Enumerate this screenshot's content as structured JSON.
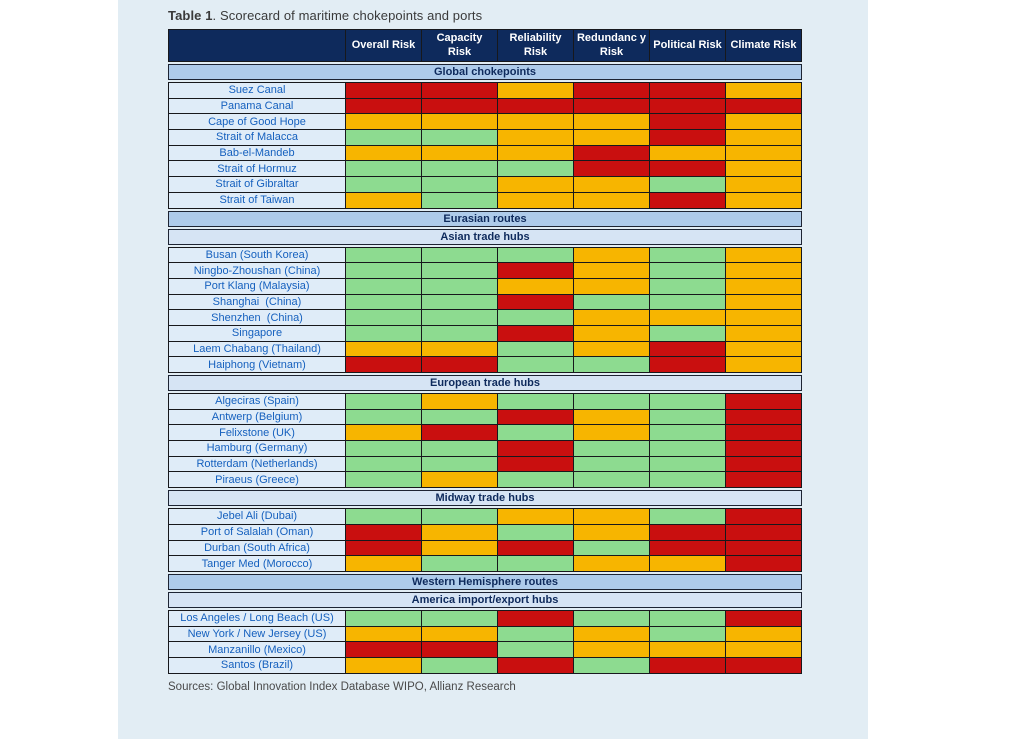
{
  "page": {
    "background": "#ffffff",
    "panel_background": "#e2edf4"
  },
  "chart_data": {
    "type": "table",
    "title_bold": "Table 1",
    "title_rest": ". Scorecard of maritime chokepoints and ports",
    "columns": [
      "Overall Risk",
      "Capacity Risk",
      "Reliability Risk",
      "Redundanc y Risk",
      "Political Risk",
      "Climate Risk"
    ],
    "risk_scale": {
      "green": "low risk",
      "amber": "medium risk",
      "red": "high risk"
    },
    "colors": {
      "red": "#c90f0f",
      "amber": "#f7b500",
      "green": "#8ddb90",
      "header_bg": "#0e2a5c",
      "header_text": "#ffffff",
      "section_medium_bg": "#aecbea",
      "section_light_bg": "#d6e4f4",
      "section_text": "#0e2a5c",
      "label_bg": "#dfecf8",
      "label_text": "#1560be",
      "cell_border": "#17181c"
    },
    "sections": [
      {
        "header": "Global chokepoints",
        "style": "medium",
        "rows": [
          {
            "label": "Suez Canal",
            "risks": [
              "red",
              "red",
              "amber",
              "red",
              "red",
              "amber"
            ]
          },
          {
            "label": "Panama Canal",
            "risks": [
              "red",
              "red",
              "red",
              "red",
              "red",
              "red"
            ]
          },
          {
            "label": "Cape of Good Hope",
            "risks": [
              "amber",
              "amber",
              "amber",
              "amber",
              "red",
              "amber"
            ]
          },
          {
            "label": "Strait of Malacca",
            "risks": [
              "green",
              "green",
              "amber",
              "amber",
              "red",
              "amber"
            ]
          },
          {
            "label": "Bab-el-Mandeb",
            "risks": [
              "amber",
              "amber",
              "amber",
              "red",
              "amber",
              "amber"
            ]
          },
          {
            "label": "Strait of Hormuz",
            "risks": [
              "green",
              "green",
              "green",
              "red",
              "red",
              "amber"
            ]
          },
          {
            "label": "Strait of Gibraltar",
            "risks": [
              "green",
              "green",
              "amber",
              "amber",
              "green",
              "amber"
            ]
          },
          {
            "label": "Strait of Taiwan",
            "risks": [
              "amber",
              "green",
              "amber",
              "amber",
              "red",
              "amber"
            ]
          }
        ]
      },
      {
        "header": "Eurasian routes",
        "style": "medium",
        "rows": []
      },
      {
        "header": "Asian trade hubs",
        "style": "light",
        "rows": [
          {
            "label": "Busan (South Korea)",
            "risks": [
              "green",
              "green",
              "green",
              "amber",
              "green",
              "amber"
            ]
          },
          {
            "label": "Ningbo-Zhoushan (China)",
            "risks": [
              "green",
              "green",
              "red",
              "amber",
              "green",
              "amber"
            ]
          },
          {
            "label": "Port Klang (Malaysia)",
            "risks": [
              "green",
              "green",
              "amber",
              "amber",
              "green",
              "amber"
            ]
          },
          {
            "label": "Shanghai  (China)",
            "risks": [
              "green",
              "green",
              "red",
              "green",
              "green",
              "amber"
            ]
          },
          {
            "label": "Shenzhen  (China)",
            "risks": [
              "green",
              "green",
              "green",
              "amber",
              "amber",
              "amber"
            ]
          },
          {
            "label": "Singapore",
            "risks": [
              "green",
              "green",
              "red",
              "amber",
              "green",
              "amber"
            ]
          },
          {
            "label": "Laem Chabang (Thailand)",
            "risks": [
              "amber",
              "amber",
              "green",
              "amber",
              "red",
              "amber"
            ]
          },
          {
            "label": "Haiphong (Vietnam)",
            "risks": [
              "red",
              "red",
              "green",
              "green",
              "red",
              "amber"
            ]
          }
        ]
      },
      {
        "header": "European trade hubs",
        "style": "light",
        "rows": [
          {
            "label": "Algeciras (Spain)",
            "risks": [
              "green",
              "amber",
              "green",
              "green",
              "green",
              "red"
            ]
          },
          {
            "label": "Antwerp (Belgium)",
            "risks": [
              "green",
              "green",
              "red",
              "amber",
              "green",
              "red"
            ]
          },
          {
            "label": "Felixstone (UK)",
            "risks": [
              "amber",
              "red",
              "green",
              "amber",
              "green",
              "red"
            ]
          },
          {
            "label": "Hamburg (Germany)",
            "risks": [
              "green",
              "green",
              "red",
              "green",
              "green",
              "red"
            ]
          },
          {
            "label": "Rotterdam (Netherlands)",
            "risks": [
              "green",
              "green",
              "red",
              "green",
              "green",
              "red"
            ]
          },
          {
            "label": "Piraeus (Greece)",
            "risks": [
              "green",
              "amber",
              "green",
              "green",
              "green",
              "red"
            ]
          }
        ]
      },
      {
        "header": "Midway trade hubs",
        "style": "light",
        "rows": [
          {
            "label": "Jebel Ali (Dubai)",
            "risks": [
              "green",
              "green",
              "amber",
              "amber",
              "green",
              "red"
            ]
          },
          {
            "label": "Port of Salalah (Oman)",
            "risks": [
              "red",
              "amber",
              "green",
              "amber",
              "red",
              "red"
            ]
          },
          {
            "label": "Durban (South Africa)",
            "risks": [
              "red",
              "amber",
              "red",
              "green",
              "red",
              "red"
            ]
          },
          {
            "label": "Tanger Med (Morocco)",
            "risks": [
              "amber",
              "green",
              "green",
              "amber",
              "amber",
              "red"
            ]
          }
        ]
      },
      {
        "header": "Western Hemisphere routes",
        "style": "medium",
        "rows": []
      },
      {
        "header": "America import/export hubs",
        "style": "light",
        "rows": [
          {
            "label": "Los Angeles / Long Beach (US)",
            "risks": [
              "green",
              "green",
              "red",
              "green",
              "green",
              "red"
            ]
          },
          {
            "label": "New York / New Jersey (US)",
            "risks": [
              "amber",
              "amber",
              "green",
              "amber",
              "green",
              "amber"
            ]
          },
          {
            "label": "Manzanillo (Mexico)",
            "risks": [
              "red",
              "red",
              "green",
              "amber",
              "amber",
              "amber"
            ]
          },
          {
            "label": "Santos (Brazil)",
            "risks": [
              "amber",
              "green",
              "red",
              "green",
              "red",
              "red"
            ]
          }
        ]
      }
    ],
    "source": "Sources: Global Innovation Index Database WIPO, Allianz Research"
  }
}
